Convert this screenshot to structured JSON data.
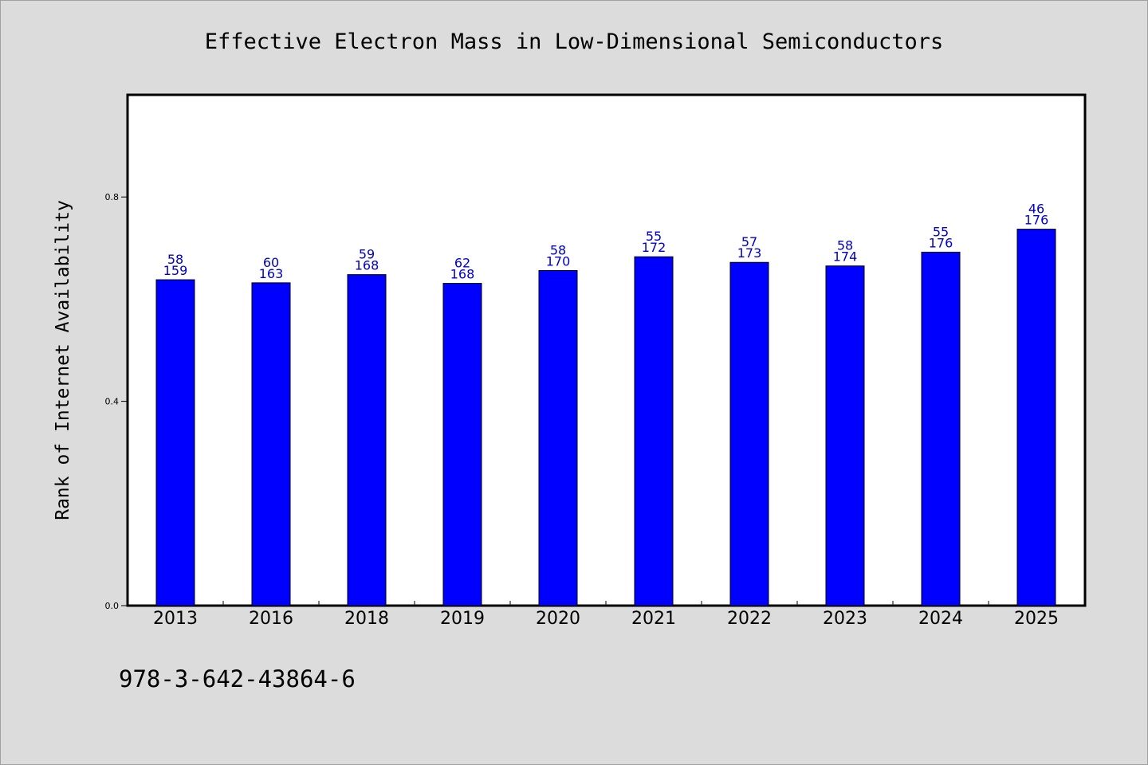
{
  "chart_data": {
    "type": "bar",
    "title": "Effective Electron Mass in Low-Dimensional Semiconductors",
    "xlabel": "",
    "ylabel": "Rank of Internet Availability",
    "categories": [
      "2013",
      "2016",
      "2018",
      "2019",
      "2020",
      "2021",
      "2022",
      "2023",
      "2024",
      "2025"
    ],
    "values": [
      0.638,
      0.632,
      0.648,
      0.631,
      0.656,
      0.683,
      0.672,
      0.665,
      0.692,
      0.737
    ],
    "labels_top": [
      "58",
      "60",
      "59",
      "62",
      "58",
      "55",
      "57",
      "58",
      "55",
      "46"
    ],
    "labels_bottom": [
      "159",
      "163",
      "168",
      "168",
      "170",
      "172",
      "173",
      "174",
      "176",
      "176"
    ],
    "ylim": [
      0.0,
      1.0
    ],
    "yticks": [
      0.0,
      0.4,
      0.8
    ],
    "ytick_labels": [
      "0.0",
      "0.4",
      "0.8"
    ],
    "grid": false,
    "colors": {
      "bar": "#0000ff",
      "label": "#0000cc",
      "background": "#dcdcdc",
      "plot_background": "#ffffff"
    }
  },
  "footer": {
    "isbn": "978-3-642-43864-6"
  }
}
